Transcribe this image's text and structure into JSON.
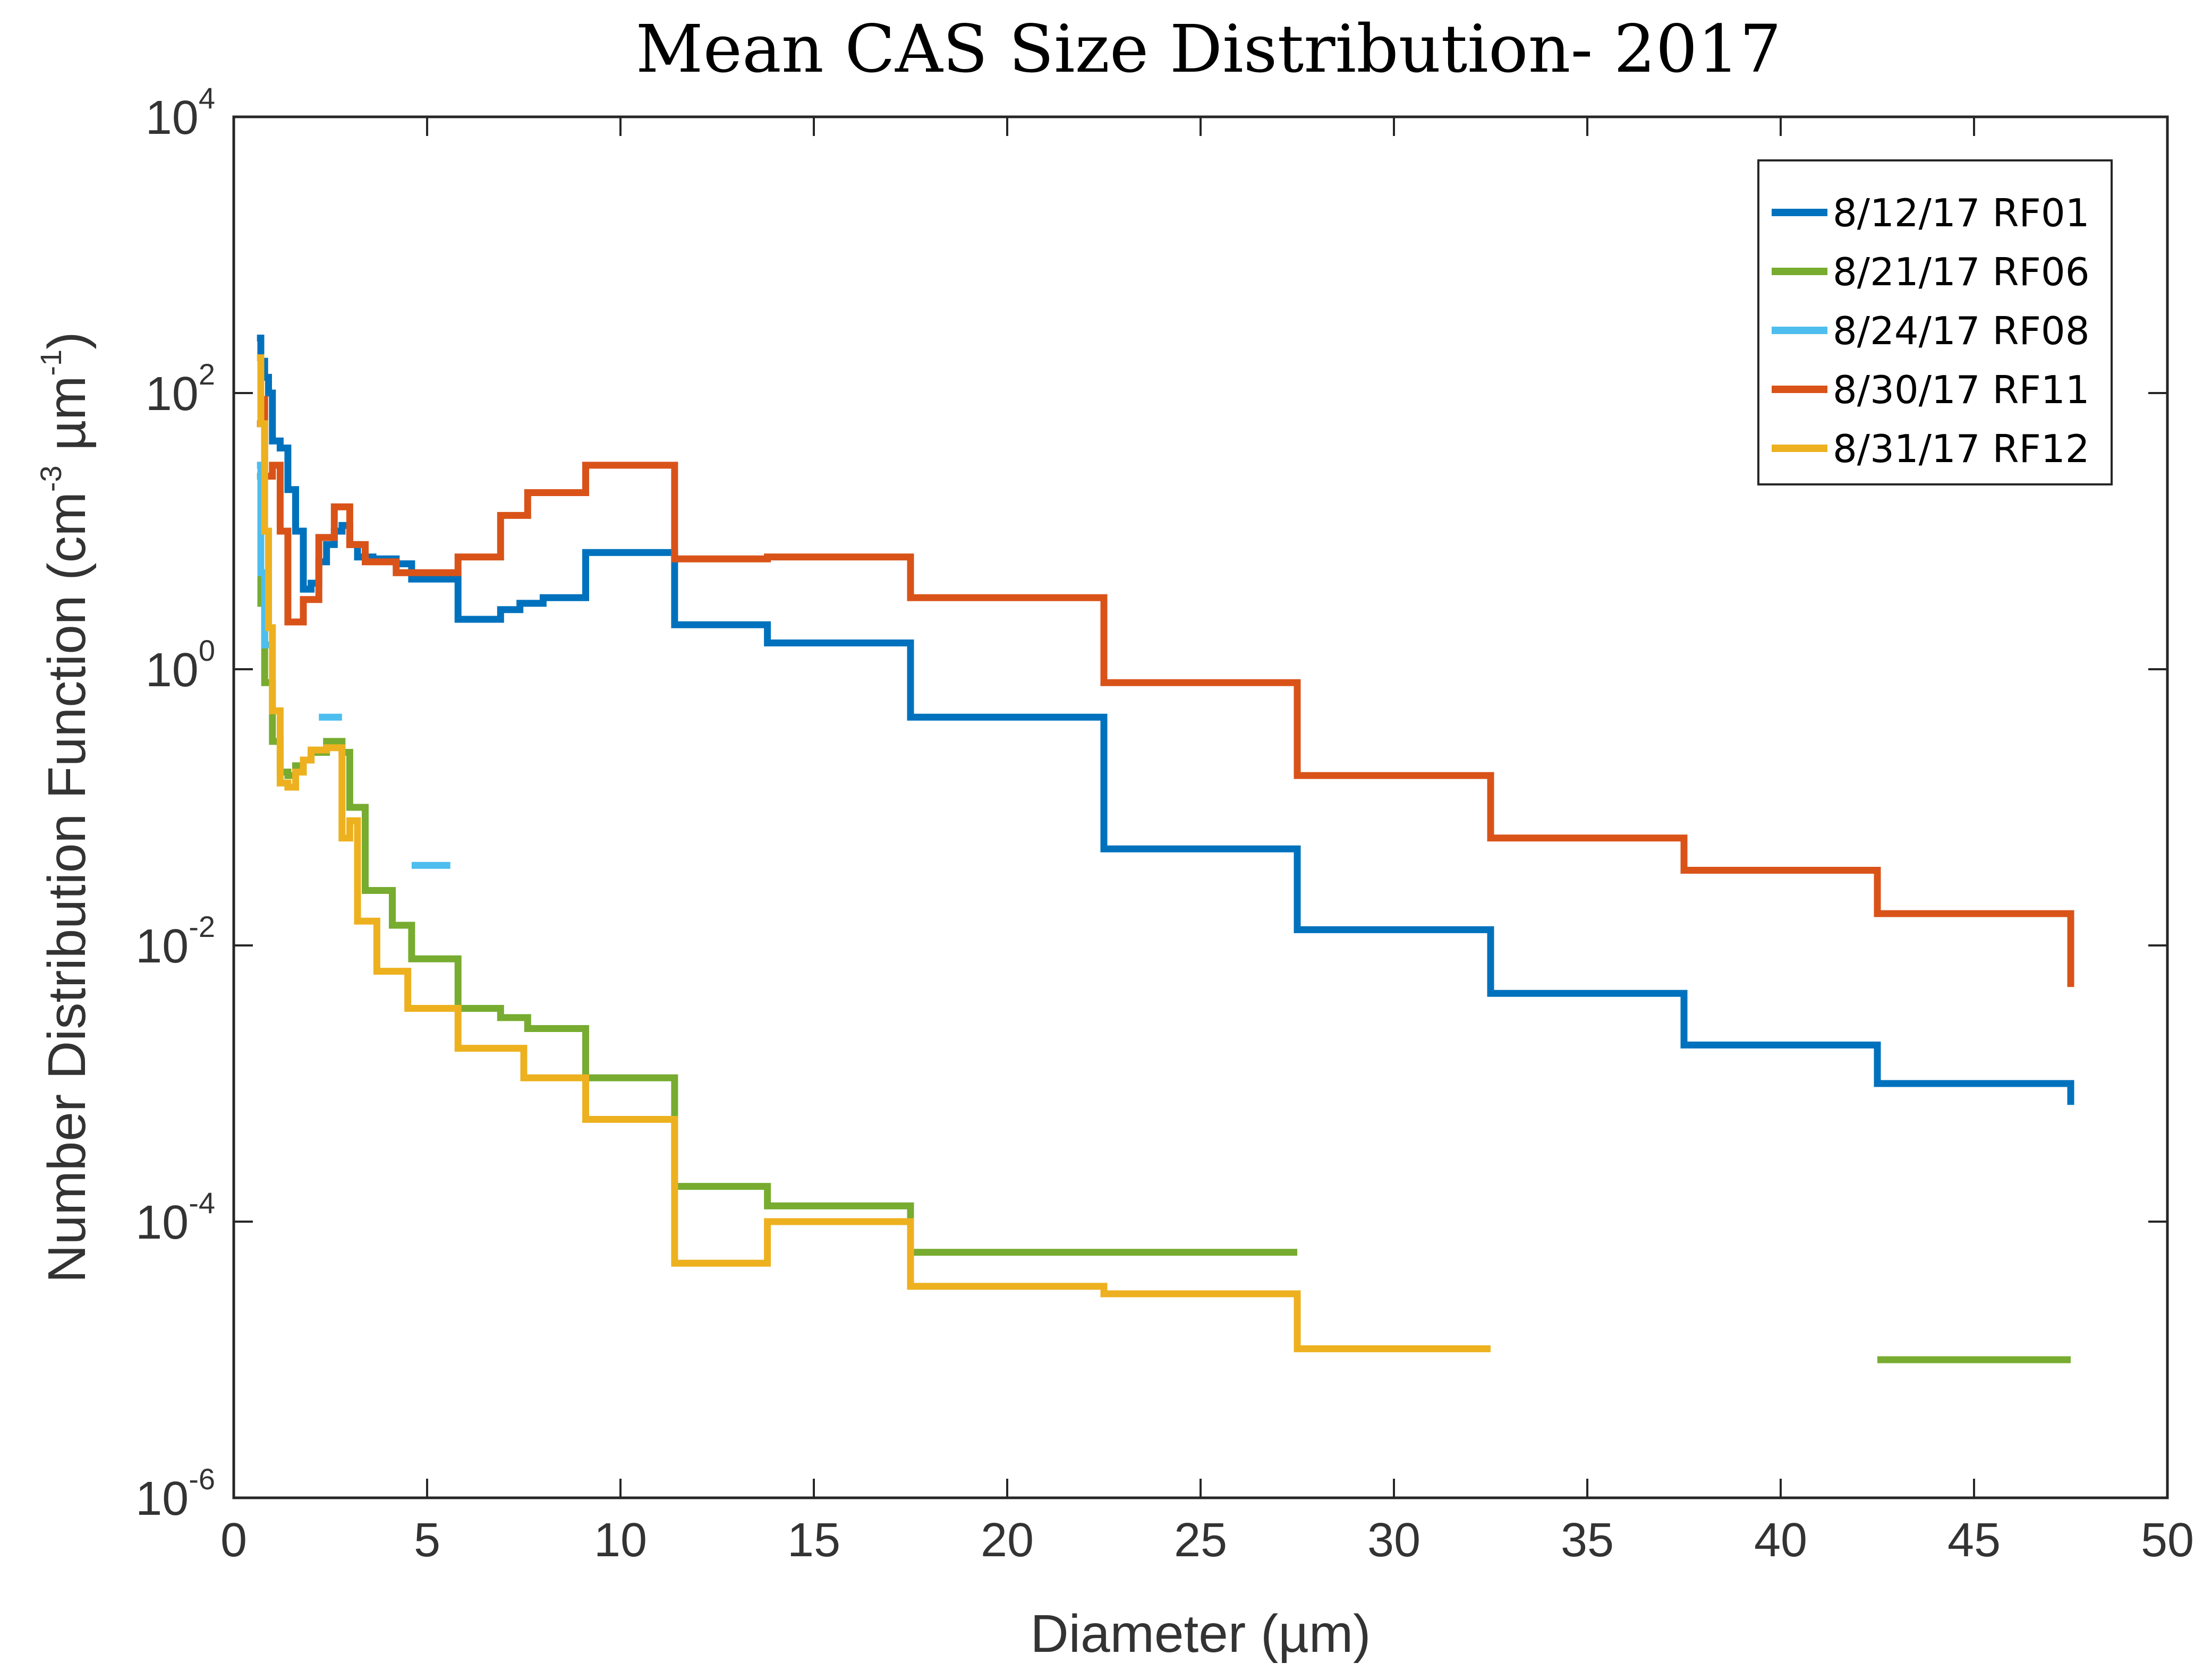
{
  "chart_data": {
    "type": "line",
    "title": "Mean CAS Size Distribution- 2017",
    "xlabel": "Diameter (µm)",
    "ylabel": {
      "prefix": "Number Distribution Function (cm",
      "exp1": "-3",
      "middle": " µm",
      "exp2": "-1",
      "suffix": ")"
    },
    "xlim": [
      0,
      50
    ],
    "ylim": [
      1e-06,
      10000.0
    ],
    "yscale": "log",
    "grid": false,
    "legend_position": "top-right",
    "x_ticks": [
      {
        "value": 0,
        "label": "0"
      },
      {
        "value": 5,
        "label": "5"
      },
      {
        "value": 10,
        "label": "10"
      },
      {
        "value": 15,
        "label": "15"
      },
      {
        "value": 20,
        "label": "20"
      },
      {
        "value": 25,
        "label": "25"
      },
      {
        "value": 30,
        "label": "30"
      },
      {
        "value": 35,
        "label": "35"
      },
      {
        "value": 40,
        "label": "40"
      },
      {
        "value": 45,
        "label": "45"
      },
      {
        "value": 50,
        "label": "50"
      }
    ],
    "y_ticks": [
      {
        "value": 1e-06,
        "base": "10",
        "exp": "-6"
      },
      {
        "value": 0.0001,
        "base": "10",
        "exp": "-4"
      },
      {
        "value": 0.01,
        "base": "10",
        "exp": "-2"
      },
      {
        "value": 1,
        "base": "10",
        "exp": "0"
      },
      {
        "value": 100.0,
        "base": "10",
        "exp": "2"
      },
      {
        "value": 10000.0,
        "base": "10",
        "exp": "4"
      }
    ],
    "series": [
      {
        "name": "8/12/17 RF01",
        "color": "#0072BD",
        "segments": [
          [
            [
              0.6,
              250
            ],
            [
              0.7,
              250
            ],
            [
              0.7,
              170
            ],
            [
              0.8,
              170
            ],
            [
              0.8,
              130
            ],
            [
              0.9,
              130
            ],
            [
              0.9,
              100
            ],
            [
              1.0,
              100
            ],
            [
              1.0,
              45
            ],
            [
              1.2,
              45
            ],
            [
              1.2,
              40
            ],
            [
              1.4,
              40
            ],
            [
              1.4,
              20
            ],
            [
              1.6,
              20
            ],
            [
              1.6,
              10
            ],
            [
              1.8,
              10
            ],
            [
              1.8,
              3.8
            ],
            [
              2.0,
              3.8
            ],
            [
              2.0,
              4.2
            ],
            [
              2.2,
              4.2
            ],
            [
              2.2,
              6
            ],
            [
              2.4,
              6
            ],
            [
              2.4,
              8
            ],
            [
              2.6,
              8
            ],
            [
              2.6,
              10
            ],
            [
              2.8,
              10
            ],
            [
              2.8,
              11
            ],
            [
              3.0,
              11
            ],
            [
              3.0,
              8
            ],
            [
              3.2,
              8
            ],
            [
              3.2,
              6.5
            ],
            [
              3.6,
              6.5
            ],
            [
              3.6,
              6.3
            ],
            [
              4.2,
              6.3
            ],
            [
              4.2,
              5.8
            ],
            [
              4.6,
              5.8
            ],
            [
              4.6,
              4.5
            ],
            [
              5.2,
              4.5
            ],
            [
              5.2,
              4.5
            ],
            [
              5.8,
              4.5
            ],
            [
              5.8,
              2.3
            ],
            [
              6.9,
              2.3
            ],
            [
              6.9,
              2.7
            ],
            [
              7.4,
              2.7
            ],
            [
              7.4,
              3.0
            ],
            [
              8.0,
              3.0
            ],
            [
              8.0,
              3.3
            ],
            [
              9.1,
              3.3
            ],
            [
              9.1,
              7.0
            ],
            [
              11.4,
              7.0
            ],
            [
              11.4,
              2.1
            ],
            [
              13.8,
              2.1
            ],
            [
              13.8,
              1.55
            ],
            [
              17.5,
              1.55
            ],
            [
              17.5,
              0.45
            ],
            [
              22.5,
              0.45
            ],
            [
              22.5,
              0.05
            ],
            [
              27.5,
              0.05
            ],
            [
              27.5,
              0.013
            ],
            [
              32.5,
              0.013
            ],
            [
              32.5,
              0.0045
            ],
            [
              37.5,
              0.0045
            ],
            [
              37.5,
              0.0019
            ],
            [
              42.5,
              0.0019
            ],
            [
              42.5,
              0.001
            ],
            [
              47.5,
              0.001
            ],
            [
              47.5,
              0.0007
            ]
          ]
        ]
      },
      {
        "name": "8/21/17 RF06",
        "color": "#77AC30",
        "segments": [
          [
            [
              0.6,
              25
            ],
            [
              0.7,
              25
            ],
            [
              0.7,
              3
            ],
            [
              0.8,
              3
            ],
            [
              0.8,
              0.8
            ],
            [
              1.0,
              0.8
            ],
            [
              1.0,
              0.3
            ],
            [
              1.2,
              0.3
            ],
            [
              1.2,
              0.18
            ],
            [
              1.4,
              0.18
            ],
            [
              1.4,
              0.17
            ],
            [
              1.6,
              0.17
            ],
            [
              1.6,
              0.2
            ],
            [
              1.8,
              0.2
            ],
            [
              1.8,
              0.22
            ],
            [
              2.0,
              0.22
            ],
            [
              2.0,
              0.25
            ],
            [
              2.4,
              0.25
            ],
            [
              2.4,
              0.3
            ],
            [
              2.8,
              0.3
            ],
            [
              2.8,
              0.25
            ],
            [
              3.0,
              0.25
            ],
            [
              3.0,
              0.1
            ],
            [
              3.4,
              0.1
            ],
            [
              3.4,
              0.025
            ],
            [
              4.1,
              0.025
            ],
            [
              4.1,
              0.014
            ],
            [
              4.6,
              0.014
            ],
            [
              4.6,
              0.008
            ],
            [
              5.8,
              0.008
            ],
            [
              5.8,
              0.0035
            ],
            [
              6.9,
              0.0035
            ],
            [
              6.9,
              0.003
            ],
            [
              7.6,
              0.003
            ],
            [
              7.6,
              0.0025
            ],
            [
              9.1,
              0.0025
            ],
            [
              9.1,
              0.0011
            ],
            [
              11.4,
              0.0011
            ],
            [
              11.4,
              0.00018
            ],
            [
              13.8,
              0.00018
            ],
            [
              13.8,
              0.00013
            ],
            [
              17.5,
              0.00013
            ],
            [
              17.5,
              6e-05
            ],
            [
              27.5,
              6e-05
            ]
          ],
          [
            [
              42.5,
              1e-05
            ],
            [
              47.5,
              1e-05
            ]
          ]
        ]
      },
      {
        "name": "8/24/17 RF08",
        "color": "#4DBEEE",
        "segments": [
          [
            [
              0.6,
              30
            ],
            [
              0.7,
              30
            ],
            [
              0.7,
              5
            ],
            [
              0.8,
              5
            ],
            [
              0.8,
              1.5
            ],
            [
              1.0,
              1.5
            ]
          ],
          [
            [
              2.2,
              0.45
            ],
            [
              2.8,
              0.45
            ]
          ],
          [
            [
              4.6,
              0.038
            ],
            [
              5.6,
              0.038
            ]
          ]
        ]
      },
      {
        "name": "8/30/17 RF11",
        "color": "#D95319",
        "segments": [
          [
            [
              0.6,
              60
            ],
            [
              0.7,
              60
            ],
            [
              0.7,
              90
            ],
            [
              0.8,
              90
            ],
            [
              0.8,
              25
            ],
            [
              1.0,
              25
            ],
            [
              1.0,
              30
            ],
            [
              1.2,
              30
            ],
            [
              1.2,
              10
            ],
            [
              1.4,
              10
            ],
            [
              1.4,
              2.2
            ],
            [
              1.8,
              2.2
            ],
            [
              1.8,
              3.2
            ],
            [
              2.2,
              3.2
            ],
            [
              2.2,
              9
            ],
            [
              2.6,
              9
            ],
            [
              2.6,
              15
            ],
            [
              3.0,
              15
            ],
            [
              3.0,
              8
            ],
            [
              3.4,
              8
            ],
            [
              3.4,
              6
            ],
            [
              4.2,
              6
            ],
            [
              4.2,
              5
            ],
            [
              5.8,
              5
            ],
            [
              5.8,
              6.5
            ],
            [
              6.9,
              6.5
            ],
            [
              6.9,
              13
            ],
            [
              7.6,
              13
            ],
            [
              7.6,
              19
            ],
            [
              9.1,
              19
            ],
            [
              9.1,
              30
            ],
            [
              11.4,
              30
            ],
            [
              11.4,
              6.3
            ],
            [
              13.8,
              6.3
            ],
            [
              13.8,
              6.5
            ],
            [
              17.5,
              6.5
            ],
            [
              17.5,
              3.3
            ],
            [
              22.5,
              3.3
            ],
            [
              22.5,
              0.8
            ],
            [
              27.5,
              0.8
            ],
            [
              27.5,
              0.17
            ],
            [
              32.5,
              0.17
            ],
            [
              32.5,
              0.06
            ],
            [
              37.5,
              0.06
            ],
            [
              37.5,
              0.035
            ],
            [
              42.5,
              0.035
            ],
            [
              42.5,
              0.017
            ],
            [
              47.5,
              0.017
            ],
            [
              47.5,
              0.005
            ]
          ]
        ]
      },
      {
        "name": "8/31/17 RF12",
        "color": "#EDB120",
        "segments": [
          [
            [
              0.6,
              180
            ],
            [
              0.7,
              180
            ],
            [
              0.7,
              60
            ],
            [
              0.8,
              60
            ],
            [
              0.8,
              10
            ],
            [
              0.9,
              10
            ],
            [
              0.9,
              2
            ],
            [
              1.0,
              2
            ],
            [
              1.0,
              0.5
            ],
            [
              1.2,
              0.5
            ],
            [
              1.2,
              0.15
            ],
            [
              1.4,
              0.15
            ],
            [
              1.4,
              0.14
            ],
            [
              1.6,
              0.14
            ],
            [
              1.6,
              0.18
            ],
            [
              1.8,
              0.18
            ],
            [
              1.8,
              0.22
            ],
            [
              2.0,
              0.22
            ],
            [
              2.0,
              0.26
            ],
            [
              2.4,
              0.26
            ],
            [
              2.4,
              0.27
            ],
            [
              2.8,
              0.27
            ],
            [
              2.8,
              0.06
            ],
            [
              3.0,
              0.06
            ],
            [
              3.0,
              0.08
            ],
            [
              3.2,
              0.08
            ],
            [
              3.2,
              0.015
            ],
            [
              3.7,
              0.015
            ],
            [
              3.7,
              0.0065
            ],
            [
              4.5,
              0.0065
            ],
            [
              4.5,
              0.0035
            ],
            [
              5.8,
              0.0035
            ],
            [
              5.8,
              0.0018
            ],
            [
              7.5,
              0.0018
            ],
            [
              7.5,
              0.0011
            ],
            [
              9.1,
              0.0011
            ],
            [
              9.1,
              0.00055
            ],
            [
              11.4,
              0.00055
            ],
            [
              11.4,
              5e-05
            ],
            [
              13.8,
              5e-05
            ],
            [
              13.8,
              0.0001
            ],
            [
              17.5,
              0.0001
            ],
            [
              17.5,
              3.4e-05
            ],
            [
              22.5,
              3.4e-05
            ],
            [
              22.5,
              3e-05
            ],
            [
              27.5,
              3e-05
            ],
            [
              27.5,
              1.2e-05
            ],
            [
              32.5,
              1.2e-05
            ]
          ]
        ]
      }
    ]
  }
}
